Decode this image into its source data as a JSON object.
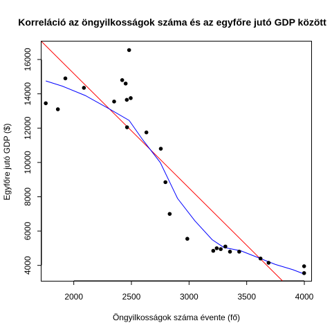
{
  "chart_data": {
    "type": "scatter",
    "title": "Korreláció az öngyilkosságok száma és az egyfőre jutó GDP között",
    "xlabel": "Öngyilkosságok száma évente (fő)",
    "ylabel": "Egyfőre jutó GDP ($)",
    "xlim": [
      1720,
      4060
    ],
    "ylim": [
      3100,
      17050
    ],
    "xticks": [
      2000,
      2500,
      3000,
      3500,
      4000
    ],
    "yticks": [
      4000,
      6000,
      8000,
      10000,
      12000,
      14000,
      16000
    ],
    "grid": false,
    "colors": {
      "points": "#000000",
      "regression_line": "#ff0000",
      "smooth_line": "#0000ff"
    },
    "points": [
      {
        "x": 1757,
        "y": 13450
      },
      {
        "x": 1862,
        "y": 13100
      },
      {
        "x": 1927,
        "y": 14900
      },
      {
        "x": 2088,
        "y": 14350
      },
      {
        "x": 2350,
        "y": 13550
      },
      {
        "x": 2420,
        "y": 14800
      },
      {
        "x": 2450,
        "y": 14600
      },
      {
        "x": 2460,
        "y": 13650
      },
      {
        "x": 2462,
        "y": 12050
      },
      {
        "x": 2480,
        "y": 16550
      },
      {
        "x": 2494,
        "y": 13750
      },
      {
        "x": 2630,
        "y": 11750
      },
      {
        "x": 2755,
        "y": 10800
      },
      {
        "x": 2795,
        "y": 8850
      },
      {
        "x": 2832,
        "y": 7000
      },
      {
        "x": 2985,
        "y": 5550
      },
      {
        "x": 3210,
        "y": 4850
      },
      {
        "x": 3240,
        "y": 5000
      },
      {
        "x": 3275,
        "y": 4950
      },
      {
        "x": 3315,
        "y": 5100
      },
      {
        "x": 3355,
        "y": 4800
      },
      {
        "x": 3435,
        "y": 4800
      },
      {
        "x": 3620,
        "y": 4400
      },
      {
        "x": 3690,
        "y": 4150
      },
      {
        "x": 3998,
        "y": 3950
      },
      {
        "x": 3998,
        "y": 3550
      }
    ],
    "regression_line": [
      {
        "x": 1720,
        "y": 17050
      },
      {
        "x": 3810,
        "y": 3100
      }
    ],
    "smooth_line": [
      {
        "x": 1757,
        "y": 14750
      },
      {
        "x": 1900,
        "y": 14450
      },
      {
        "x": 2100,
        "y": 13900
      },
      {
        "x": 2300,
        "y": 13150
      },
      {
        "x": 2480,
        "y": 12450
      },
      {
        "x": 2600,
        "y": 11300
      },
      {
        "x": 2750,
        "y": 10000
      },
      {
        "x": 2900,
        "y": 7900
      },
      {
        "x": 3050,
        "y": 6600
      },
      {
        "x": 3200,
        "y": 5500
      },
      {
        "x": 3300,
        "y": 5050
      },
      {
        "x": 3450,
        "y": 4850
      },
      {
        "x": 3600,
        "y": 4450
      },
      {
        "x": 3750,
        "y": 4050
      },
      {
        "x": 3900,
        "y": 3750
      },
      {
        "x": 3998,
        "y": 3500
      }
    ]
  }
}
